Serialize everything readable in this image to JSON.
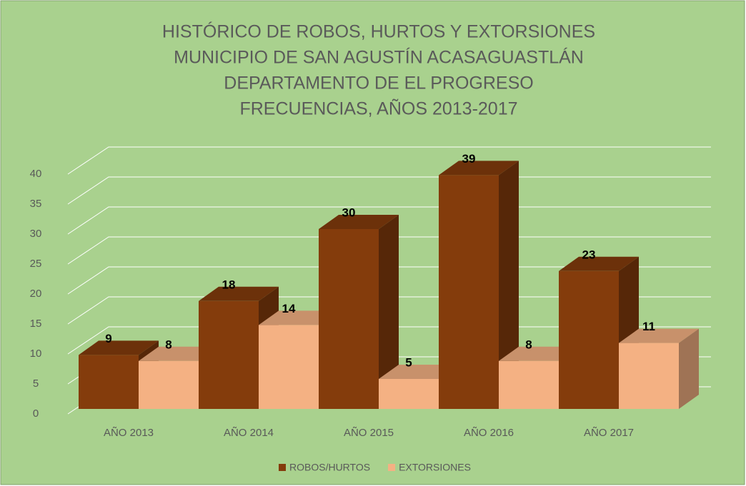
{
  "chart_data": {
    "type": "bar3d",
    "title": [
      "HISTÓRICO DE ROBOS, HURTOS Y EXTORSIONES",
      "MUNICIPIO DE SAN AGUSTÍN ACASAGUASTLÁN",
      "DEPARTAMENTO DE EL PROGRESO",
      "FRECUENCIAS, AÑOS 2013-2017"
    ],
    "categories": [
      "AÑO 2013",
      "AÑO 2014",
      "AÑO 2015",
      "AÑO 2016",
      "AÑO 2017"
    ],
    "series": [
      {
        "name": "ROBOS/HURTOS",
        "color": "#843c0c",
        "values": [
          9,
          18,
          30,
          39,
          23
        ]
      },
      {
        "name": "EXTORSIONES",
        "color": "#f4b183",
        "values": [
          8,
          14,
          5,
          8,
          11
        ]
      }
    ],
    "ylim": [
      0,
      40
    ],
    "yticks": [
      0,
      5,
      10,
      15,
      20,
      25,
      30,
      35,
      40
    ],
    "grid": true,
    "legend": "bottom"
  }
}
